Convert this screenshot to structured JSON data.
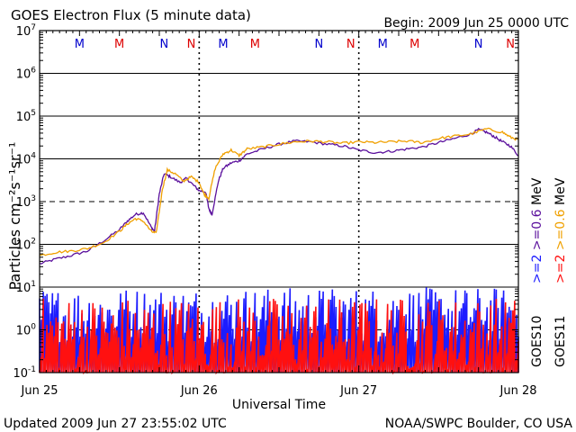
{
  "header": {
    "title": "GOES Electron Flux (5 minute data)",
    "begin": "Begin: 2009 Jun 25 0000 UTC"
  },
  "footer": {
    "updated": "Updated 2009 Jun 27 23:55:02 UTC",
    "credit": "NOAA/SWPC Boulder, CO USA"
  },
  "colors": {
    "background": "#ffffff",
    "axis": "#000000",
    "purple": "#5a0f9c",
    "orange": "#f0a000",
    "blue": "#1c1cff",
    "red": "#ff1010",
    "midnight_blue": "#0000cc",
    "midnight_red": "#dd0000"
  },
  "chart_data": {
    "type": "line",
    "title": "GOES Electron Flux (5 minute data)",
    "xlabel": "Universal Time",
    "ylabel": "Particles cm⁻²s⁻¹sr⁻¹",
    "y_scale": "log",
    "ylim": [
      0.1,
      10000000
    ],
    "y_ticks": [
      {
        "base": "10",
        "exp": "7"
      },
      {
        "base": "10",
        "exp": "6"
      },
      {
        "base": "10",
        "exp": "5"
      },
      {
        "base": "10",
        "exp": "4"
      },
      {
        "base": "10",
        "exp": "3"
      },
      {
        "base": "10",
        "exp": "2"
      },
      {
        "base": "10",
        "exp": "1"
      },
      {
        "base": "10",
        "exp": "0"
      },
      {
        "base": "10",
        "exp": "-1"
      }
    ],
    "x_ticks": [
      "Jun 25",
      "Jun 26",
      "Jun 27",
      "Jun 28"
    ],
    "xlim_days": [
      0,
      3
    ],
    "midnight_noon_markers": [
      {
        "day": 0.25,
        "label": "M",
        "color": "blue"
      },
      {
        "day": 0.5,
        "label": "M",
        "color": "red"
      },
      {
        "day": 0.78,
        "label": "N",
        "color": "blue"
      },
      {
        "day": 0.95,
        "label": "N",
        "color": "red"
      },
      {
        "day": 1.15,
        "label": "M",
        "color": "blue"
      },
      {
        "day": 1.35,
        "label": "M",
        "color": "red"
      },
      {
        "day": 1.75,
        "label": "N",
        "color": "blue"
      },
      {
        "day": 1.95,
        "label": "N",
        "color": "red"
      },
      {
        "day": 2.15,
        "label": "M",
        "color": "blue"
      },
      {
        "day": 2.35,
        "label": "M",
        "color": "red"
      },
      {
        "day": 2.75,
        "label": "N",
        "color": "blue"
      },
      {
        "day": 2.95,
        "label": "N",
        "color": "red"
      }
    ],
    "right_labels": {
      "col1": [
        {
          "text": ">=2",
          "color": "blue"
        },
        {
          "text": ">=0.6",
          "color": "purple"
        },
        {
          "text": "MeV",
          "color": "axis"
        }
      ],
      "col2": [
        {
          "text": ">=2",
          "color": "red"
        },
        {
          "text": ">=0.6",
          "color": "orange"
        },
        {
          "text": "MeV",
          "color": "axis"
        }
      ],
      "satellites": [
        "GOES10",
        "GOES11"
      ]
    },
    "series": [
      {
        "color": "purple",
        "points": [
          [
            0.0,
            35
          ],
          [
            0.1,
            45
          ],
          [
            0.2,
            55
          ],
          [
            0.3,
            70
          ],
          [
            0.4,
            120
          ],
          [
            0.5,
            220
          ],
          [
            0.55,
            350
          ],
          [
            0.6,
            500
          ],
          [
            0.65,
            550
          ],
          [
            0.7,
            250
          ],
          [
            0.72,
            200
          ],
          [
            0.75,
            1500
          ],
          [
            0.78,
            4500
          ],
          [
            0.82,
            3800
          ],
          [
            0.88,
            2800
          ],
          [
            0.92,
            3500
          ],
          [
            0.96,
            2500
          ],
          [
            1.0,
            1800
          ],
          [
            1.04,
            1700
          ],
          [
            1.06,
            700
          ],
          [
            1.08,
            500
          ],
          [
            1.12,
            3000
          ],
          [
            1.15,
            6000
          ],
          [
            1.2,
            8000
          ],
          [
            1.25,
            9000
          ],
          [
            1.3,
            13000
          ],
          [
            1.4,
            17000
          ],
          [
            1.5,
            22000
          ],
          [
            1.6,
            26000
          ],
          [
            1.7,
            25000
          ],
          [
            1.8,
            22000
          ],
          [
            1.9,
            20000
          ],
          [
            2.0,
            16000
          ],
          [
            2.1,
            14000
          ],
          [
            2.2,
            15000
          ],
          [
            2.3,
            17000
          ],
          [
            2.4,
            19000
          ],
          [
            2.5,
            24000
          ],
          [
            2.6,
            30000
          ],
          [
            2.7,
            38000
          ],
          [
            2.75,
            48000
          ],
          [
            2.8,
            42000
          ],
          [
            2.85,
            33000
          ],
          [
            2.9,
            25000
          ],
          [
            2.95,
            20000
          ],
          [
            3.0,
            12000
          ]
        ]
      },
      {
        "color": "orange",
        "points": [
          [
            0.0,
            55
          ],
          [
            0.1,
            65
          ],
          [
            0.2,
            70
          ],
          [
            0.3,
            80
          ],
          [
            0.4,
            110
          ],
          [
            0.5,
            200
          ],
          [
            0.55,
            300
          ],
          [
            0.6,
            400
          ],
          [
            0.65,
            350
          ],
          [
            0.7,
            200
          ],
          [
            0.73,
            180
          ],
          [
            0.77,
            2000
          ],
          [
            0.8,
            5500
          ],
          [
            0.85,
            4500
          ],
          [
            0.9,
            3000
          ],
          [
            0.95,
            3800
          ],
          [
            1.0,
            2800
          ],
          [
            1.03,
            1500
          ],
          [
            1.06,
            1200
          ],
          [
            1.1,
            6000
          ],
          [
            1.15,
            13000
          ],
          [
            1.2,
            16000
          ],
          [
            1.25,
            12000
          ],
          [
            1.3,
            17000
          ],
          [
            1.4,
            19000
          ],
          [
            1.5,
            22000
          ],
          [
            1.6,
            25000
          ],
          [
            1.7,
            26000
          ],
          [
            1.8,
            25000
          ],
          [
            1.9,
            23000
          ],
          [
            2.0,
            25000
          ],
          [
            2.1,
            24000
          ],
          [
            2.2,
            25000
          ],
          [
            2.3,
            26000
          ],
          [
            2.4,
            24000
          ],
          [
            2.5,
            30000
          ],
          [
            2.6,
            34000
          ],
          [
            2.7,
            38000
          ],
          [
            2.8,
            50000
          ],
          [
            2.9,
            42000
          ],
          [
            2.95,
            32000
          ],
          [
            3.0,
            28000
          ]
        ]
      },
      {
        "color": "blue",
        "kind": "noisy-bars",
        "range": [
          0.5,
          10
        ]
      },
      {
        "color": "red",
        "kind": "noisy-bars",
        "range": [
          0.1,
          6
        ]
      }
    ]
  }
}
